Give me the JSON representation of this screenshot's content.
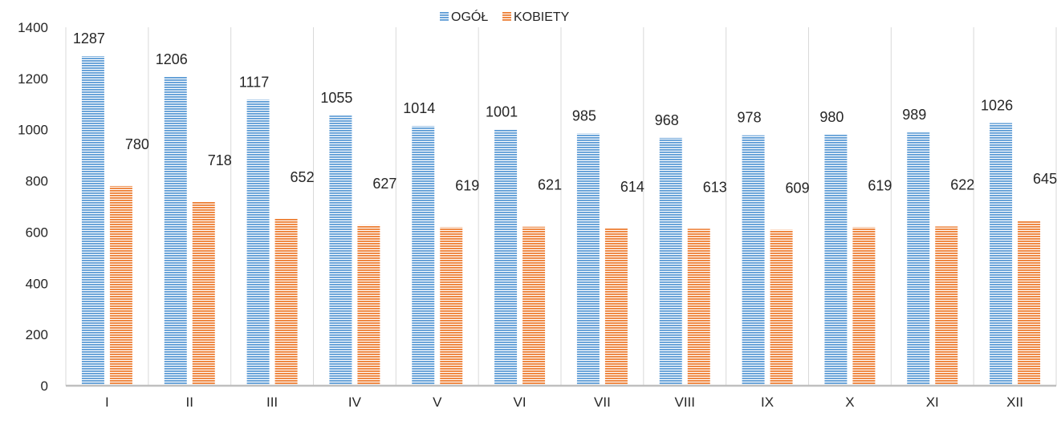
{
  "chart_data": {
    "type": "bar",
    "title": "",
    "xlabel": "",
    "ylabel": "",
    "categories": [
      "I",
      "II",
      "III",
      "IV",
      "V",
      "VI",
      "VII",
      "VIII",
      "IX",
      "X",
      "XI",
      "XII"
    ],
    "series": [
      {
        "name": "OGÓŁ",
        "color": "#5b9bd5",
        "values": [
          1287,
          1206,
          1117,
          1055,
          1014,
          1001,
          985,
          968,
          978,
          980,
          989,
          1026
        ]
      },
      {
        "name": "KOBIETY",
        "color": "#ed7d31",
        "values": [
          780,
          718,
          652,
          627,
          619,
          621,
          614,
          613,
          609,
          619,
          622,
          645
        ]
      }
    ],
    "ylim": [
      0,
      1400
    ],
    "yticks": [
      0,
      200,
      400,
      600,
      800,
      1000,
      1200,
      1400
    ],
    "grid": "vertical category separators",
    "legend": "top-center",
    "bar_pattern": "horizontal stripes"
  }
}
